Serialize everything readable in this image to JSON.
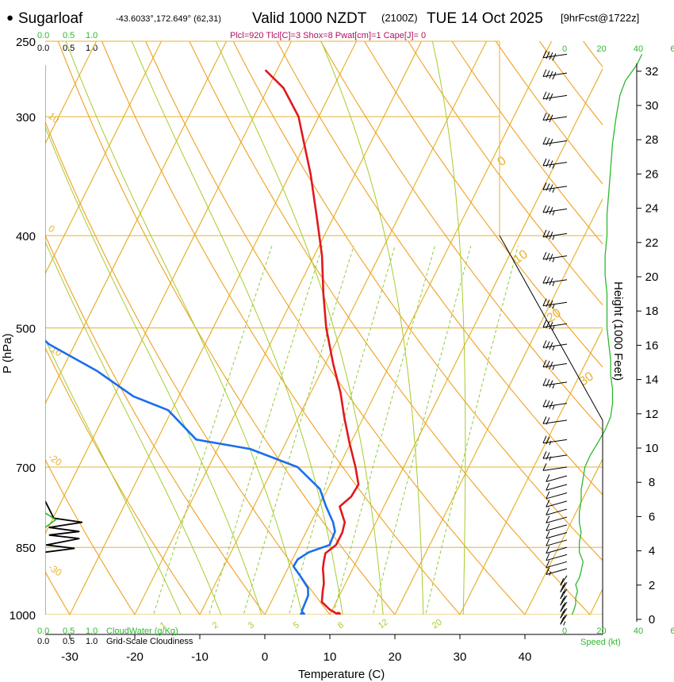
{
  "colors": {
    "isotherm": "#e8b230",
    "dry_adiabat": "#f0a020",
    "moist_adiabat": "#a6cc2c",
    "mixing_ratio": "#8fca3a",
    "temperature": "#e0191e",
    "dewpoint": "#1a6eee",
    "cloud": "#2db82d",
    "params": "#b01060",
    "black": "#000000"
  },
  "header": {
    "bullet": "●",
    "station": "Sugarloaf",
    "coords": "-43.6033°,172.649° (62,31)",
    "valid": "Valid 1000 NZDT",
    "utc": "(2100Z)",
    "date": "TUE 14 Oct 2025",
    "forecast": "[9hrFcst@1722z]",
    "params": "Plcl=920 Tlcl[C]=3 Shox=8 Pwat[cm]=1 Cape[J]= 0"
  },
  "chart_data": {
    "type": "line",
    "title": "Skew-T log-P sounding",
    "xlabel": "Temperature (C)",
    "ylabel": "P (hPa)",
    "y2label": "Height (1000 Feet)",
    "xlim": [
      -35,
      45
    ],
    "ylim": [
      1050,
      250
    ],
    "x_ticks": [
      "-30",
      "-20",
      "-10",
      "0",
      "10",
      "20",
      "30",
      "40"
    ],
    "x_tick_values": [
      -30,
      -20,
      -10,
      0,
      10,
      20,
      30,
      40
    ],
    "pressure_ticks": [
      "250",
      "300",
      "400",
      "500",
      "700",
      "850",
      "1000"
    ],
    "pressure_tick_values": [
      250,
      300,
      400,
      500,
      700,
      850,
      1000
    ],
    "height_ticks": [
      "0",
      "2",
      "4",
      "6",
      "8",
      "10",
      "12",
      "14",
      "16",
      "18",
      "20",
      "22",
      "24",
      "26",
      "28",
      "30",
      "32"
    ],
    "height_tick_values": [
      0,
      2,
      4,
      6,
      8,
      10,
      12,
      14,
      16,
      18,
      20,
      22,
      24,
      26,
      28,
      30,
      32
    ],
    "isotherm_labels": [
      "10",
      "0",
      "-10",
      "-20",
      "-30"
    ],
    "isotherm_label_values": [
      10,
      0,
      -10,
      -20,
      -30
    ],
    "adiabat_labels": [
      "0",
      "10",
      "20",
      "30"
    ],
    "mixing_ratio_labels": [
      "1",
      "2",
      "3",
      "5",
      "8",
      "12",
      "20"
    ],
    "series": [
      {
        "name": "Temperature",
        "points": [
          [
            11.3,
            1000
          ],
          [
            9.6,
            988
          ],
          [
            7.8,
            970
          ],
          [
            7.1,
            945
          ],
          [
            6.7,
            928
          ],
          [
            6.1,
            912
          ],
          [
            5.4,
            895
          ],
          [
            5.0,
            880
          ],
          [
            4.6,
            862
          ],
          [
            5.6,
            845
          ],
          [
            5.6,
            820
          ],
          [
            5.2,
            800
          ],
          [
            4.2,
            785
          ],
          [
            3.2,
            770
          ],
          [
            4.2,
            752
          ],
          [
            4.4,
            730
          ],
          [
            2.6,
            700
          ],
          [
            -0.2,
            660
          ],
          [
            -3.0,
            620
          ],
          [
            -5.4,
            585
          ],
          [
            -8.8,
            545
          ],
          [
            -12.6,
            500
          ],
          [
            -15.7,
            460
          ],
          [
            -18.8,
            420
          ],
          [
            -22.3,
            385
          ],
          [
            -26.8,
            345
          ],
          [
            -30.2,
            320
          ],
          [
            -33.1,
            300
          ],
          [
            -37.6,
            280
          ],
          [
            -41.8,
            268
          ]
        ]
      },
      {
        "name": "Dewpoint",
        "points": [
          [
            5.8,
            1000
          ],
          [
            5.4,
            990
          ],
          [
            5.2,
            955
          ],
          [
            4.6,
            938
          ],
          [
            2.4,
            910
          ],
          [
            0.7,
            890
          ],
          [
            0.8,
            875
          ],
          [
            2.0,
            860
          ],
          [
            4.6,
            845
          ],
          [
            4.4,
            818
          ],
          [
            3.4,
            800
          ],
          [
            1.1,
            770
          ],
          [
            -1.2,
            738
          ],
          [
            -6.3,
            700
          ],
          [
            -15.0,
            670
          ],
          [
            -24.0,
            655
          ],
          [
            -30.6,
            610
          ],
          [
            -37.0,
            590
          ],
          [
            -44.5,
            555
          ],
          [
            -54.0,
            520
          ],
          [
            -62.0,
            480
          ],
          [
            -72.0,
            450
          ],
          [
            -95.0,
            360
          ],
          [
            -99.0,
            330
          ],
          [
            -104.0,
            315
          ],
          [
            -107.5,
            300
          ],
          [
            -112.0,
            285
          ],
          [
            -116.0,
            268
          ]
        ]
      }
    ],
    "surface_temperature_c": 11.3,
    "surface_dewpoint_c": 5.8,
    "inset_scale_top": [
      "0.0",
      "0.5",
      "1.0"
    ],
    "inset_scale_bottom_cloudwater": [
      "0.0",
      "0.5",
      "1.0"
    ],
    "inset_scale_bottom_cloudiness": [
      "0.0",
      "0.5",
      "1.0"
    ],
    "inset_scale_top_green": [
      "0.0",
      "0.5",
      "1.0"
    ],
    "cloudwater_label": "CloudWater (g/Kg)",
    "cloudiness_label": "Grid-Scale Cloudiness",
    "cloudiness_profile": [
      [
        0.0,
        760
      ],
      [
        0.18,
        792
      ],
      [
        0.78,
        800
      ],
      [
        0.08,
        810
      ],
      [
        0.72,
        818
      ],
      [
        0.08,
        825
      ],
      [
        0.72,
        832
      ],
      [
        0.02,
        845
      ],
      [
        0.62,
        852
      ],
      [
        0.0,
        860
      ]
    ],
    "cloudwater_profile": [
      [
        0.0,
        782
      ],
      [
        0.22,
        795
      ],
      [
        0.0,
        810
      ]
    ],
    "wind_speed_scale": [
      "0",
      "20",
      "40",
      "60"
    ],
    "wind_speed_scale_values": [
      0,
      20,
      40,
      60
    ],
    "wind_speed_label": "Speed (kt)",
    "wind_speed_profile": [
      [
        4,
        1000
      ],
      [
        5,
        990
      ],
      [
        6,
        975
      ],
      [
        6,
        960
      ],
      [
        7,
        945
      ],
      [
        6,
        930
      ],
      [
        8,
        915
      ],
      [
        9,
        900
      ],
      [
        10,
        880
      ],
      [
        8,
        860
      ],
      [
        8,
        840
      ],
      [
        9,
        820
      ],
      [
        8,
        800
      ],
      [
        8,
        780
      ],
      [
        9,
        760
      ],
      [
        9,
        740
      ],
      [
        10,
        720
      ],
      [
        11,
        700
      ],
      [
        14,
        680
      ],
      [
        18,
        660
      ],
      [
        22,
        640
      ],
      [
        25,
        620
      ],
      [
        26,
        600
      ],
      [
        26,
        580
      ],
      [
        25,
        560
      ],
      [
        25,
        540
      ],
      [
        24,
        520
      ],
      [
        23,
        500
      ],
      [
        23,
        480
      ],
      [
        23,
        460
      ],
      [
        22,
        440
      ],
      [
        22,
        420
      ],
      [
        23,
        400
      ],
      [
        23,
        380
      ],
      [
        24,
        360
      ],
      [
        25,
        340
      ],
      [
        26,
        320
      ],
      [
        28,
        300
      ],
      [
        30,
        285
      ],
      [
        33,
        275
      ],
      [
        39,
        265
      ],
      [
        42,
        258
      ]
    ],
    "wind_barbs": [
      {
        "p": 1000,
        "spd": 5
      },
      {
        "p": 985,
        "spd": 5
      },
      {
        "p": 970,
        "spd": 5
      },
      {
        "p": 955,
        "spd": 5
      },
      {
        "p": 940,
        "spd": 5
      },
      {
        "p": 925,
        "spd": 5
      },
      {
        "p": 910,
        "spd": 5
      },
      {
        "p": 895,
        "spd": 5
      },
      {
        "p": 880,
        "spd": 10
      },
      {
        "p": 865,
        "spd": 10
      },
      {
        "p": 850,
        "spd": 10
      },
      {
        "p": 835,
        "spd": 10
      },
      {
        "p": 820,
        "spd": 10
      },
      {
        "p": 805,
        "spd": 10
      },
      {
        "p": 790,
        "spd": 10
      },
      {
        "p": 775,
        "spd": 10
      },
      {
        "p": 760,
        "spd": 10
      },
      {
        "p": 745,
        "spd": 10
      },
      {
        "p": 730,
        "spd": 10
      },
      {
        "p": 715,
        "spd": 10
      },
      {
        "p": 700,
        "spd": 10
      },
      {
        "p": 680,
        "spd": 15
      },
      {
        "p": 655,
        "spd": 15
      },
      {
        "p": 625,
        "spd": 20
      },
      {
        "p": 600,
        "spd": 25
      },
      {
        "p": 570,
        "spd": 25
      },
      {
        "p": 545,
        "spd": 25
      },
      {
        "p": 520,
        "spd": 25
      },
      {
        "p": 495,
        "spd": 25
      },
      {
        "p": 470,
        "spd": 25
      },
      {
        "p": 445,
        "spd": 25
      },
      {
        "p": 420,
        "spd": 25
      },
      {
        "p": 398,
        "spd": 25
      },
      {
        "p": 375,
        "spd": 25
      },
      {
        "p": 355,
        "spd": 25
      },
      {
        "p": 335,
        "spd": 25
      },
      {
        "p": 318,
        "spd": 30
      },
      {
        "p": 300,
        "spd": 30
      },
      {
        "p": 285,
        "spd": 30
      },
      {
        "p": 270,
        "spd": 40
      },
      {
        "p": 258,
        "spd": 40
      }
    ]
  }
}
